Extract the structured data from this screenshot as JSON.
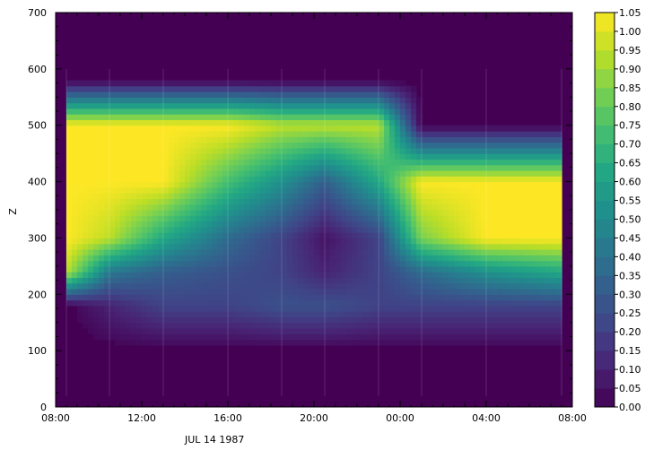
{
  "chart_data": {
    "type": "heatmap",
    "title": "",
    "xlabel": "JUL 14 1987",
    "ylabel": "Z",
    "x_tick_labels": [
      "08:00",
      "12:00",
      "16:00",
      "20:00",
      "00:00",
      "04:00",
      "08:00"
    ],
    "x_tick_hours": [
      8,
      12,
      16,
      20,
      24,
      28,
      32
    ],
    "xlim_hours": [
      8,
      32
    ],
    "y_ticks": [
      0,
      100,
      200,
      300,
      400,
      500,
      600,
      700
    ],
    "ylim": [
      0,
      700
    ],
    "colorbar": {
      "labels": [
        "1.05",
        "1.00",
        "0.95",
        "0.90",
        "0.85",
        "0.80",
        "0.75",
        "0.70",
        "0.65",
        "0.60",
        "0.55",
        "0.50",
        "0.45",
        "0.40",
        "0.35",
        "0.30",
        "0.25",
        "0.20",
        "0.15",
        "0.10",
        "0.05",
        "0.00"
      ],
      "min": 0.0,
      "max": 1.05,
      "step": 0.05,
      "colormap": "viridis"
    },
    "data_extent": {
      "x_hours": [
        8.5,
        31.5
      ],
      "z": [
        20,
        600
      ]
    },
    "series_description": "time-height field; high (~1.0) layer between ~250 and ~550 m early, thinning to a ring around a low-valued core (~300 m) near 20:00, high again after 02:00; ~0 below 100 m and above ~550 m",
    "grid": [
      {
        "t": 8.5,
        "z": [
          0.0,
          0.0,
          0.9,
          1.0,
          1.0,
          1.0,
          0.0
        ]
      },
      {
        "t": 10.5,
        "z": [
          0.0,
          0.1,
          0.4,
          0.9,
          1.0,
          1.0,
          0.0
        ]
      },
      {
        "t": 13.0,
        "z": [
          0.0,
          0.2,
          0.3,
          0.6,
          1.0,
          1.0,
          0.0
        ]
      },
      {
        "t": 16.0,
        "z": [
          0.0,
          0.2,
          0.25,
          0.35,
          0.7,
          1.0,
          0.0
        ]
      },
      {
        "t": 18.5,
        "z": [
          0.0,
          0.25,
          0.2,
          0.2,
          0.5,
          0.9,
          0.0
        ]
      },
      {
        "t": 20.5,
        "z": [
          0.0,
          0.25,
          0.1,
          0.05,
          0.3,
          0.9,
          0.0
        ]
      },
      {
        "t": 23.0,
        "z": [
          0.0,
          0.2,
          0.2,
          0.2,
          0.6,
          0.9,
          0.0
        ]
      },
      {
        "t": 25.0,
        "z": [
          0.0,
          0.2,
          0.35,
          0.8,
          1.0,
          0.0,
          0.0
        ]
      },
      {
        "t": 28.0,
        "z": [
          0.0,
          0.2,
          0.5,
          1.0,
          1.0,
          0.0,
          0.0
        ]
      },
      {
        "t": 31.5,
        "z": [
          0.0,
          0.2,
          0.6,
          1.0,
          1.0,
          0.0,
          0.0
        ]
      }
    ],
    "grid_z_levels": [
      100,
      180,
      240,
      300,
      400,
      500,
      580
    ]
  }
}
